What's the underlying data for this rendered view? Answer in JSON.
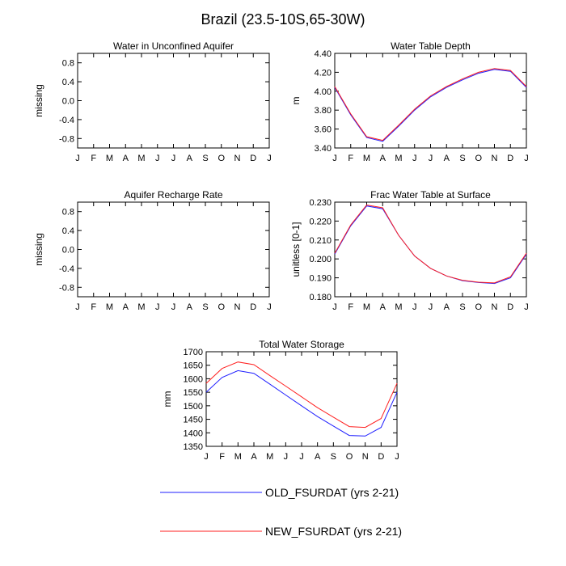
{
  "title": "Brazil (23.5-10S,65-30W)",
  "months": [
    "J",
    "F",
    "M",
    "A",
    "M",
    "J",
    "J",
    "A",
    "S",
    "O",
    "N",
    "D",
    "J"
  ],
  "legend": [
    {
      "name": "OLD_FSURDAT (yrs 2-21)",
      "color": "#1f1fff"
    },
    {
      "name": "NEW_FSURDAT (yrs 2-21)",
      "color": "#ff2020"
    }
  ],
  "chart_data": [
    {
      "type": "line",
      "title": "Water in Unconfined Aquifer",
      "ylabel": "missing",
      "ylim": [
        -1.0,
        1.0
      ],
      "yticks": [
        "0.8",
        "0.4",
        "0.0",
        "-0.4",
        "-0.8"
      ],
      "ytick_values": [
        0.8,
        0.4,
        0.0,
        -0.4,
        -0.8
      ],
      "series": []
    },
    {
      "type": "line",
      "title": "Water Table Depth",
      "ylabel": "m",
      "ylim": [
        3.4,
        4.4
      ],
      "yticks": [
        "4.40",
        "4.20",
        "4.00",
        "3.80",
        "3.60",
        "3.40"
      ],
      "ytick_values": [
        4.4,
        4.2,
        4.0,
        3.8,
        3.6,
        3.4
      ],
      "series": [
        {
          "name": "OLD_FSURDAT (yrs 2-21)",
          "values": [
            4.04,
            3.75,
            3.51,
            3.47,
            3.63,
            3.8,
            3.94,
            4.04,
            4.12,
            4.19,
            4.23,
            4.21,
            4.04
          ]
        },
        {
          "name": "NEW_FSURDAT (yrs 2-21)",
          "values": [
            4.05,
            3.76,
            3.52,
            3.48,
            3.64,
            3.81,
            3.95,
            4.05,
            4.13,
            4.2,
            4.24,
            4.22,
            4.05
          ]
        }
      ]
    },
    {
      "type": "line",
      "title": "Aquifer Recharge Rate",
      "ylabel": "missing",
      "ylim": [
        -1.0,
        1.0
      ],
      "yticks": [
        "0.8",
        "0.4",
        "0.0",
        "-0.4",
        "-0.8"
      ],
      "ytick_values": [
        0.8,
        0.4,
        0.0,
        -0.4,
        -0.8
      ],
      "series": []
    },
    {
      "type": "line",
      "title": "Frac Water Table at Surface",
      "ylabel": "unitless [0-1]",
      "ylim": [
        0.18,
        0.23
      ],
      "yticks": [
        "0.230",
        "0.220",
        "0.210",
        "0.200",
        "0.190",
        "0.180"
      ],
      "ytick_values": [
        0.23,
        0.22,
        0.21,
        0.2,
        0.19,
        0.18
      ],
      "series": [
        {
          "name": "OLD_FSURDAT (yrs 2-21)",
          "values": [
            0.2025,
            0.2175,
            0.228,
            0.2265,
            0.2125,
            0.2015,
            0.195,
            0.191,
            0.1885,
            0.1875,
            0.187,
            0.19,
            0.2025
          ]
        },
        {
          "name": "NEW_FSURDAT (yrs 2-21)",
          "values": [
            0.203,
            0.218,
            0.2285,
            0.227,
            0.2125,
            0.2015,
            0.195,
            0.191,
            0.1887,
            0.1877,
            0.1873,
            0.1905,
            0.203
          ]
        }
      ]
    },
    {
      "type": "line",
      "title": "Total Water Storage",
      "ylabel": "mm",
      "ylim": [
        1350,
        1700
      ],
      "yticks": [
        "1700",
        "1650",
        "1600",
        "1550",
        "1500",
        "1450",
        "1400",
        "1350"
      ],
      "ytick_values": [
        1700,
        1650,
        1600,
        1550,
        1500,
        1450,
        1400,
        1350
      ],
      "series": [
        {
          "name": "OLD_FSURDAT (yrs 2-21)",
          "values": [
            1550,
            1605,
            1630,
            1620,
            1580,
            1540,
            1500,
            1460,
            1425,
            1390,
            1388,
            1420,
            1550
          ]
        },
        {
          "name": "NEW_FSURDAT (yrs 2-21)",
          "values": [
            1583,
            1638,
            1662,
            1652,
            1612,
            1573,
            1533,
            1493,
            1458,
            1423,
            1420,
            1453,
            1583
          ]
        }
      ]
    }
  ]
}
